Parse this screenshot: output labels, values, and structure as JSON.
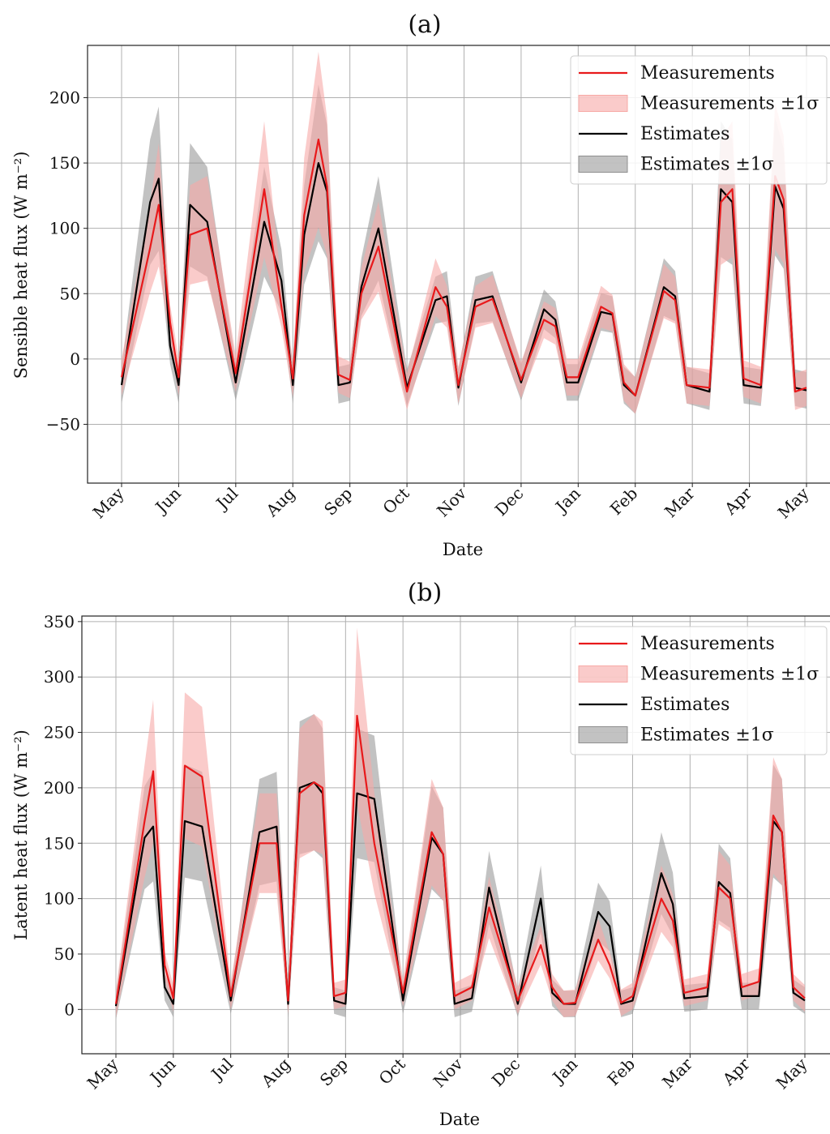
{
  "chart_data": [
    {
      "type": "line",
      "title": "(a)",
      "xlabel": "Date",
      "ylabel": "Sensible heat flux (W m⁻²)",
      "ylim": [
        -95,
        240
      ],
      "yticks": [
        200,
        150,
        100,
        50,
        0,
        -50
      ],
      "ytick_labels": [
        "200",
        "150",
        "100",
        "50",
        "0",
        "−50"
      ],
      "xticks": [
        "May",
        "Jun",
        "Jul",
        "Aug",
        "Sep",
        "Oct",
        "Nov",
        "Dec",
        "Jan",
        "Feb",
        "Mar",
        "Apr",
        "May"
      ],
      "grid": true,
      "legend_placement": "top-right",
      "legend": [
        "Measurements",
        "Measurements ±1σ",
        "Estimates",
        "Estimates ±1σ"
      ],
      "colors": {
        "measurements": "#e8191b",
        "measurements_band": "#f7a9a6",
        "estimates": "#000000",
        "estimates_band": "#8f8f8f"
      },
      "x": [
        0.0,
        0.5,
        0.65,
        0.85,
        1.0,
        1.2,
        1.5,
        2.0,
        2.5,
        2.8,
        3.0,
        3.2,
        3.45,
        3.6,
        3.8,
        4.0,
        4.2,
        4.5,
        5.0,
        5.5,
        5.7,
        5.9,
        6.2,
        6.5,
        7.0,
        7.4,
        7.6,
        7.8,
        8.0,
        8.4,
        8.6,
        8.8,
        9.0,
        9.5,
        9.7,
        9.9,
        10.3,
        10.5,
        10.7,
        10.9,
        11.2,
        11.45,
        11.6,
        11.8,
        12.0
      ],
      "series": [
        {
          "name": "Measurements",
          "values": [
            -14,
            85,
            118,
            28,
            -14,
            95,
            100,
            -11,
            130,
            40,
            -15,
            110,
            168,
            132,
            -12,
            -16,
            50,
            86,
            -25,
            55,
            40,
            -20,
            40,
            46,
            -16,
            30,
            25,
            -14,
            -14,
            40,
            35,
            -18,
            -28,
            52,
            45,
            -20,
            -22,
            120,
            130,
            -15,
            -20,
            140,
            122,
            -25,
            -22
          ]
        },
        {
          "name": "Estimates",
          "values": [
            -20,
            120,
            138,
            10,
            -20,
            118,
            105,
            -18,
            105,
            60,
            -20,
            95,
            150,
            128,
            -20,
            -18,
            55,
            100,
            -22,
            45,
            48,
            -22,
            45,
            48,
            -18,
            38,
            30,
            -18,
            -18,
            36,
            34,
            -20,
            -28,
            55,
            48,
            -20,
            -25,
            130,
            120,
            -20,
            -22,
            132,
            115,
            -22,
            -24
          ]
        }
      ]
    },
    {
      "type": "line",
      "title": "(b)",
      "xlabel": "Date",
      "ylabel": "Latent heat flux (W m⁻²)",
      "ylim": [
        -40,
        355
      ],
      "yticks": [
        350,
        300,
        250,
        200,
        150,
        100,
        50,
        0
      ],
      "ytick_labels": [
        "350",
        "300",
        "250",
        "200",
        "150",
        "100",
        "50",
        "0"
      ],
      "xticks": [
        "May",
        "Jun",
        "Jul",
        "Aug",
        "Sep",
        "Oct",
        "Nov",
        "Dec",
        "Jan",
        "Feb",
        "Mar",
        "Apr",
        "May"
      ],
      "grid": true,
      "legend_placement": "top-right",
      "legend": [
        "Measurements",
        "Measurements ±1σ",
        "Estimates",
        "Estimates ±1σ"
      ],
      "colors": {
        "measurements": "#e8191b",
        "measurements_band": "#f7a9a6",
        "estimates": "#000000",
        "estimates_band": "#8f8f8f"
      },
      "x": [
        0.0,
        0.5,
        0.65,
        0.85,
        1.0,
        1.2,
        1.5,
        2.0,
        2.5,
        2.8,
        3.0,
        3.2,
        3.45,
        3.6,
        3.8,
        4.0,
        4.2,
        4.5,
        5.0,
        5.5,
        5.7,
        5.9,
        6.2,
        6.5,
        7.0,
        7.4,
        7.6,
        7.8,
        8.0,
        8.4,
        8.6,
        8.8,
        9.0,
        9.5,
        9.7,
        9.9,
        10.3,
        10.5,
        10.7,
        10.9,
        11.2,
        11.45,
        11.6,
        11.8,
        12.0
      ],
      "series": [
        {
          "name": "Measurements",
          "values": [
            5,
            170,
            215,
            40,
            10,
            220,
            210,
            12,
            150,
            150,
            8,
            195,
            205,
            200,
            12,
            15,
            265,
            150,
            15,
            160,
            140,
            12,
            20,
            92,
            8,
            58,
            20,
            5,
            6,
            63,
            40,
            6,
            12,
            100,
            80,
            15,
            20,
            110,
            100,
            20,
            25,
            175,
            160,
            20,
            10
          ]
        },
        {
          "name": "Estimates",
          "values": [
            3,
            155,
            165,
            20,
            5,
            170,
            165,
            8,
            160,
            165,
            5,
            200,
            205,
            195,
            8,
            5,
            195,
            190,
            8,
            155,
            140,
            5,
            10,
            110,
            5,
            100,
            15,
            5,
            5,
            88,
            75,
            5,
            8,
            123,
            95,
            10,
            12,
            115,
            105,
            12,
            12,
            170,
            160,
            15,
            8
          ]
        }
      ]
    }
  ]
}
